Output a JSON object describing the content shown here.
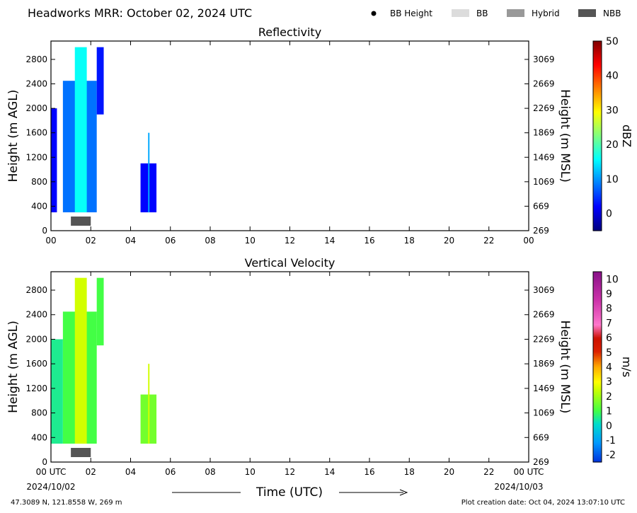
{
  "header": {
    "title": "Headworks MRR:  October 02, 2024 UTC",
    "legend": [
      {
        "label": "BB Height",
        "kind": "dot",
        "color": "#000000"
      },
      {
        "label": "BB",
        "kind": "box",
        "color": "#dcdcdc"
      },
      {
        "label": "Hybrid",
        "kind": "box",
        "color": "#999999"
      },
      {
        "label": "NBB",
        "kind": "box",
        "color": "#555555"
      }
    ]
  },
  "chart_data": [
    {
      "type": "heatmap",
      "title": "Reflectivity",
      "xlabel": "",
      "ylabel": "Height (m AGL)",
      "ylabel_right": "Height (m MSL)",
      "x_range_hours": [
        0,
        24
      ],
      "x_tick_labels": [
        "00",
        "02",
        "04",
        "06",
        "08",
        "10",
        "12",
        "14",
        "16",
        "18",
        "20",
        "22",
        "00"
      ],
      "ylim": [
        0,
        3100
      ],
      "y_ticks": [
        0,
        400,
        800,
        1200,
        1600,
        2000,
        2400,
        2800
      ],
      "y_right_ticks": [
        269,
        669,
        1069,
        1469,
        1869,
        2269,
        2669,
        3069
      ],
      "colorbar": {
        "label": "dBZ",
        "range": [
          -5,
          50
        ],
        "ticks": [
          0,
          10,
          20,
          30,
          40,
          50
        ],
        "colormap": "jet"
      },
      "echoes": [
        {
          "t_start": 0.0,
          "t_end": 0.3,
          "h_bottom": 300,
          "h_top": 2000,
          "value": 2
        },
        {
          "t_start": 0.6,
          "t_end": 2.3,
          "h_bottom": 300,
          "h_top": 2450,
          "value": 8
        },
        {
          "t_start": 1.2,
          "t_end": 1.8,
          "h_bottom": 300,
          "h_top": 3000,
          "value": 16
        },
        {
          "t_start": 2.3,
          "t_end": 2.65,
          "h_bottom": 1900,
          "h_top": 3000,
          "value": 3
        },
        {
          "t_start": 4.5,
          "t_end": 5.3,
          "h_bottom": 300,
          "h_top": 1100,
          "value": 2
        },
        {
          "t_start": 4.88,
          "t_end": 4.95,
          "h_bottom": 300,
          "h_top": 1600,
          "value": 11
        }
      ],
      "bright_band": [
        {
          "type": "NBB",
          "t_start": 1.0,
          "t_end": 2.0
        }
      ]
    },
    {
      "type": "heatmap",
      "title": "Vertical Velocity",
      "xlabel": "Time (UTC)",
      "ylabel": "Height (m AGL)",
      "ylabel_right": "Height (m MSL)",
      "x_range_hours": [
        0,
        24
      ],
      "x_tick_labels": [
        "00 UTC",
        "02",
        "04",
        "06",
        "08",
        "10",
        "12",
        "14",
        "16",
        "18",
        "20",
        "22",
        "00 UTC"
      ],
      "x_date_labels": [
        "2024/10/02",
        "2024/10/03"
      ],
      "ylim": [
        0,
        3100
      ],
      "y_ticks": [
        0,
        400,
        800,
        1200,
        1600,
        2000,
        2400,
        2800
      ],
      "y_right_ticks": [
        269,
        669,
        1069,
        1469,
        1869,
        2269,
        2669,
        3069
      ],
      "colorbar": {
        "label": "m/s",
        "range": [
          -2.5,
          10.5
        ],
        "ticks": [
          -2,
          -1,
          0,
          1,
          2,
          3,
          4,
          5,
          6,
          7,
          8,
          9,
          10
        ]
      },
      "echoes": [
        {
          "t_start": 0.0,
          "t_end": 0.6,
          "h_bottom": 300,
          "h_top": 2000,
          "value": 0.5
        },
        {
          "t_start": 0.6,
          "t_end": 2.3,
          "h_bottom": 300,
          "h_top": 2450,
          "value": 1.0
        },
        {
          "t_start": 1.2,
          "t_end": 1.8,
          "h_bottom": 300,
          "h_top": 3000,
          "value": 2.5
        },
        {
          "t_start": 2.3,
          "t_end": 2.65,
          "h_bottom": 1900,
          "h_top": 3000,
          "value": 1.0
        },
        {
          "t_start": 4.5,
          "t_end": 5.3,
          "h_bottom": 300,
          "h_top": 1100,
          "value": 1.5
        },
        {
          "t_start": 4.88,
          "t_end": 4.95,
          "h_bottom": 300,
          "h_top": 1600,
          "value": 2.5
        }
      ],
      "bright_band": [
        {
          "type": "NBB",
          "t_start": 1.0,
          "t_end": 2.0
        }
      ]
    }
  ],
  "footer": {
    "location": "47.3089 N, 121.8558 W, 269 m",
    "creation_date": "Plot creation date: Oct 04, 2024 13:07:10 UTC"
  }
}
